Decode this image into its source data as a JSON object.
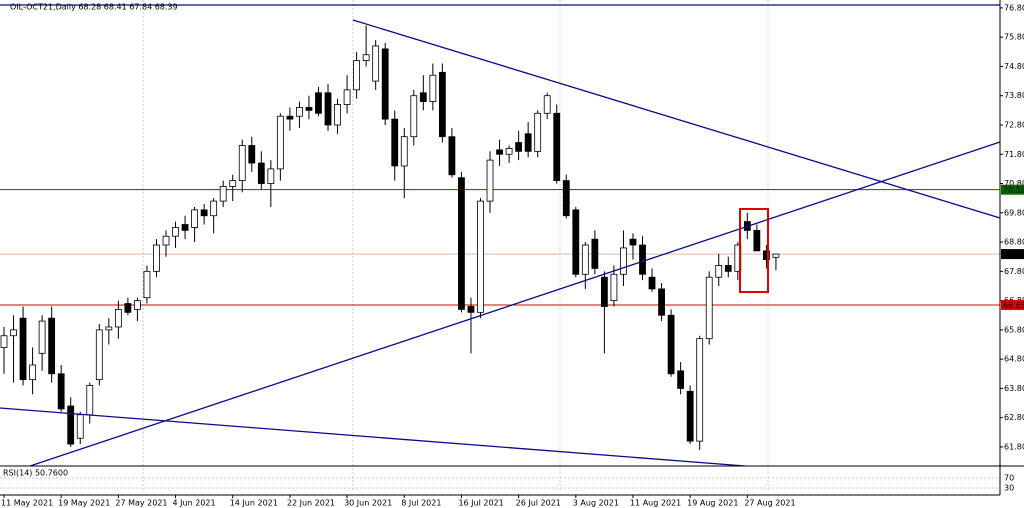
{
  "chart_data": {
    "type": "candlestick",
    "title": "OIL-OCT21,Daily  68.28 68.41 67.84 68.39",
    "categories": [
      "11 May 2021",
      null,
      null,
      null,
      null,
      null,
      "19 May 2021",
      null,
      null,
      null,
      null,
      null,
      "27 May 2021",
      null,
      null,
      null,
      null,
      null,
      "4 Jun 2021",
      null,
      null,
      null,
      null,
      null,
      "14 Jun 2021",
      null,
      null,
      null,
      null,
      null,
      "22 Jun 2021",
      null,
      null,
      null,
      null,
      null,
      "30 Jun 2021",
      null,
      null,
      null,
      null,
      null,
      "8 Jul 2021",
      null,
      null,
      null,
      null,
      null,
      "16 Jul 2021",
      null,
      null,
      null,
      null,
      null,
      "26 Jul 2021",
      null,
      null,
      null,
      null,
      null,
      "3 Aug 2021",
      null,
      null,
      null,
      null,
      null,
      "11 Aug 2021",
      null,
      null,
      null,
      null,
      null,
      "19 Aug 2021",
      null,
      null,
      null,
      null,
      null,
      "27 Aug 2021",
      null,
      null,
      null
    ],
    "open": [
      65.2,
      65.6,
      66.2,
      64.1,
      65.0,
      66.2,
      64.3,
      63.2,
      62.1,
      62.9,
      64.1,
      65.8,
      65.9,
      66.7,
      66.5,
      66.9,
      67.8,
      68.7,
      69.0,
      69.4,
      69.3,
      69.9,
      69.7,
      70.2,
      70.7,
      70.9,
      72.1,
      71.5,
      70.8,
      71.3,
      73.1,
      73.1,
      73.4,
      73.9,
      73.9,
      72.8,
      73.5,
      74.0,
      75.0,
      74.3,
      75.4,
      73.0,
      71.4,
      72.4,
      73.9,
      73.6,
      74.6,
      72.4,
      71.0,
      66.6,
      66.4,
      70.2,
      71.95,
      71.8,
      72.2,
      72.5,
      71.9,
      73.2,
      73.2,
      70.9,
      69.9,
      67.7,
      68.9,
      67.6,
      66.8,
      67.7,
      68.9,
      68.7,
      67.6,
      67.2,
      66.3,
      64.4,
      63.7,
      62.0,
      65.5,
      67.6,
      68.0,
      67.8,
      69.5,
      69.2,
      68.5,
      68.28
    ],
    "high": [
      65.9,
      66.3,
      66.6,
      65.2,
      66.3,
      66.6,
      64.6,
      63.5,
      63.0,
      64.0,
      66.0,
      66.2,
      66.8,
      66.9,
      66.9,
      68.0,
      68.9,
      69.2,
      69.5,
      69.7,
      70.0,
      70.1,
      70.3,
      70.9,
      71.1,
      72.3,
      72.4,
      71.9,
      71.6,
      73.2,
      73.4,
      73.6,
      73.8,
      74.1,
      74.2,
      73.7,
      74.5,
      75.3,
      76.2,
      75.7,
      75.6,
      73.3,
      72.7,
      74.0,
      74.5,
      74.9,
      74.9,
      72.7,
      71.2,
      66.9,
      70.3,
      71.9,
      72.3,
      72.1,
      72.6,
      72.9,
      73.3,
      73.9,
      73.5,
      71.1,
      70.0,
      68.8,
      69.2,
      67.8,
      68.0,
      69.2,
      69.1,
      69.0,
      67.9,
      67.4,
      66.5,
      64.7,
      63.9,
      65.6,
      67.8,
      68.4,
      68.3,
      68.8,
      69.8,
      69.4,
      68.7,
      68.41
    ],
    "low": [
      64.3,
      64.0,
      63.9,
      63.6,
      64.4,
      64.0,
      63.0,
      61.8,
      61.9,
      62.6,
      63.9,
      65.3,
      65.5,
      66.3,
      66.1,
      66.7,
      67.6,
      68.3,
      68.6,
      68.9,
      68.8,
      69.4,
      69.1,
      70.0,
      70.2,
      70.5,
      71.2,
      70.6,
      70.0,
      70.9,
      72.6,
      72.7,
      73.0,
      73.1,
      72.6,
      72.5,
      73.2,
      73.7,
      74.8,
      74.0,
      72.8,
      70.9,
      70.3,
      72.1,
      73.3,
      73.3,
      72.2,
      71.0,
      66.4,
      65.0,
      66.2,
      69.8,
      71.4,
      71.5,
      71.6,
      71.7,
      71.7,
      73.0,
      70.8,
      69.6,
      67.6,
      67.2,
      67.7,
      65.0,
      66.6,
      67.3,
      68.2,
      67.5,
      67.1,
      66.1,
      64.2,
      63.6,
      61.9,
      61.7,
      65.3,
      67.3,
      67.6,
      67.5,
      68.9,
      68.5,
      67.9,
      67.84
    ],
    "close": [
      65.6,
      65.8,
      64.1,
      64.6,
      66.1,
      64.3,
      63.1,
      61.9,
      62.9,
      63.9,
      65.8,
      65.9,
      66.5,
      66.4,
      66.8,
      67.8,
      68.7,
      69.0,
      69.3,
      69.2,
      69.9,
      69.7,
      70.2,
      70.7,
      70.9,
      72.1,
      71.5,
      70.8,
      71.3,
      73.1,
      73.0,
      73.4,
      73.3,
      73.2,
      72.8,
      73.5,
      74.0,
      75.0,
      75.2,
      75.5,
      73.0,
      71.4,
      72.4,
      73.8,
      73.6,
      74.5,
      72.4,
      71.1,
      66.5,
      66.4,
      70.2,
      71.6,
      71.8,
      72.0,
      71.9,
      71.9,
      73.2,
      73.8,
      70.9,
      69.7,
      67.7,
      68.7,
      67.9,
      66.6,
      67.7,
      68.6,
      68.7,
      67.7,
      67.2,
      66.3,
      64.3,
      63.8,
      62.0,
      65.5,
      67.6,
      68.0,
      67.8,
      68.7,
      69.2,
      68.5,
      68.2,
      68.39
    ],
    "up_color": "#ffffff",
    "down_color": "#000000",
    "edge_color": "#000000",
    "ylim": [
      61.15,
      77.07
    ],
    "yticks": [
      {
        "value": 76.8,
        "label": "76.80"
      },
      {
        "value": 75.8,
        "label": "75.80"
      },
      {
        "value": 74.8,
        "label": "74.80"
      },
      {
        "value": 73.8,
        "label": "73.80"
      },
      {
        "value": 72.8,
        "label": "72.80"
      },
      {
        "value": 71.8,
        "label": "71.80"
      },
      {
        "value": 70.8,
        "label": "70.80"
      },
      {
        "value": 69.8,
        "label": "69.80"
      },
      {
        "value": 68.8,
        "label": "68.80"
      },
      {
        "value": 67.8,
        "label": "67.80"
      },
      {
        "value": 66.8,
        "label": "66.80"
      },
      {
        "value": 65.8,
        "label": "65.80"
      },
      {
        "value": 64.8,
        "label": "64.80"
      },
      {
        "value": 63.8,
        "label": "63.80"
      },
      {
        "value": 62.8,
        "label": "62.80"
      },
      {
        "value": 61.8,
        "label": "61.80"
      }
    ],
    "levels": [
      {
        "value": 70.59,
        "color": "#006400"
      },
      {
        "value": 66.65,
        "color": "#e00000"
      },
      {
        "value": 68.39,
        "color": "#e8b4a4",
        "tag_color": "#000000"
      }
    ],
    "rsi": {
      "label": "RSI(14) 50.7600",
      "ylim": [
        0,
        100
      ],
      "yticks": [
        70,
        30
      ]
    }
  }
}
